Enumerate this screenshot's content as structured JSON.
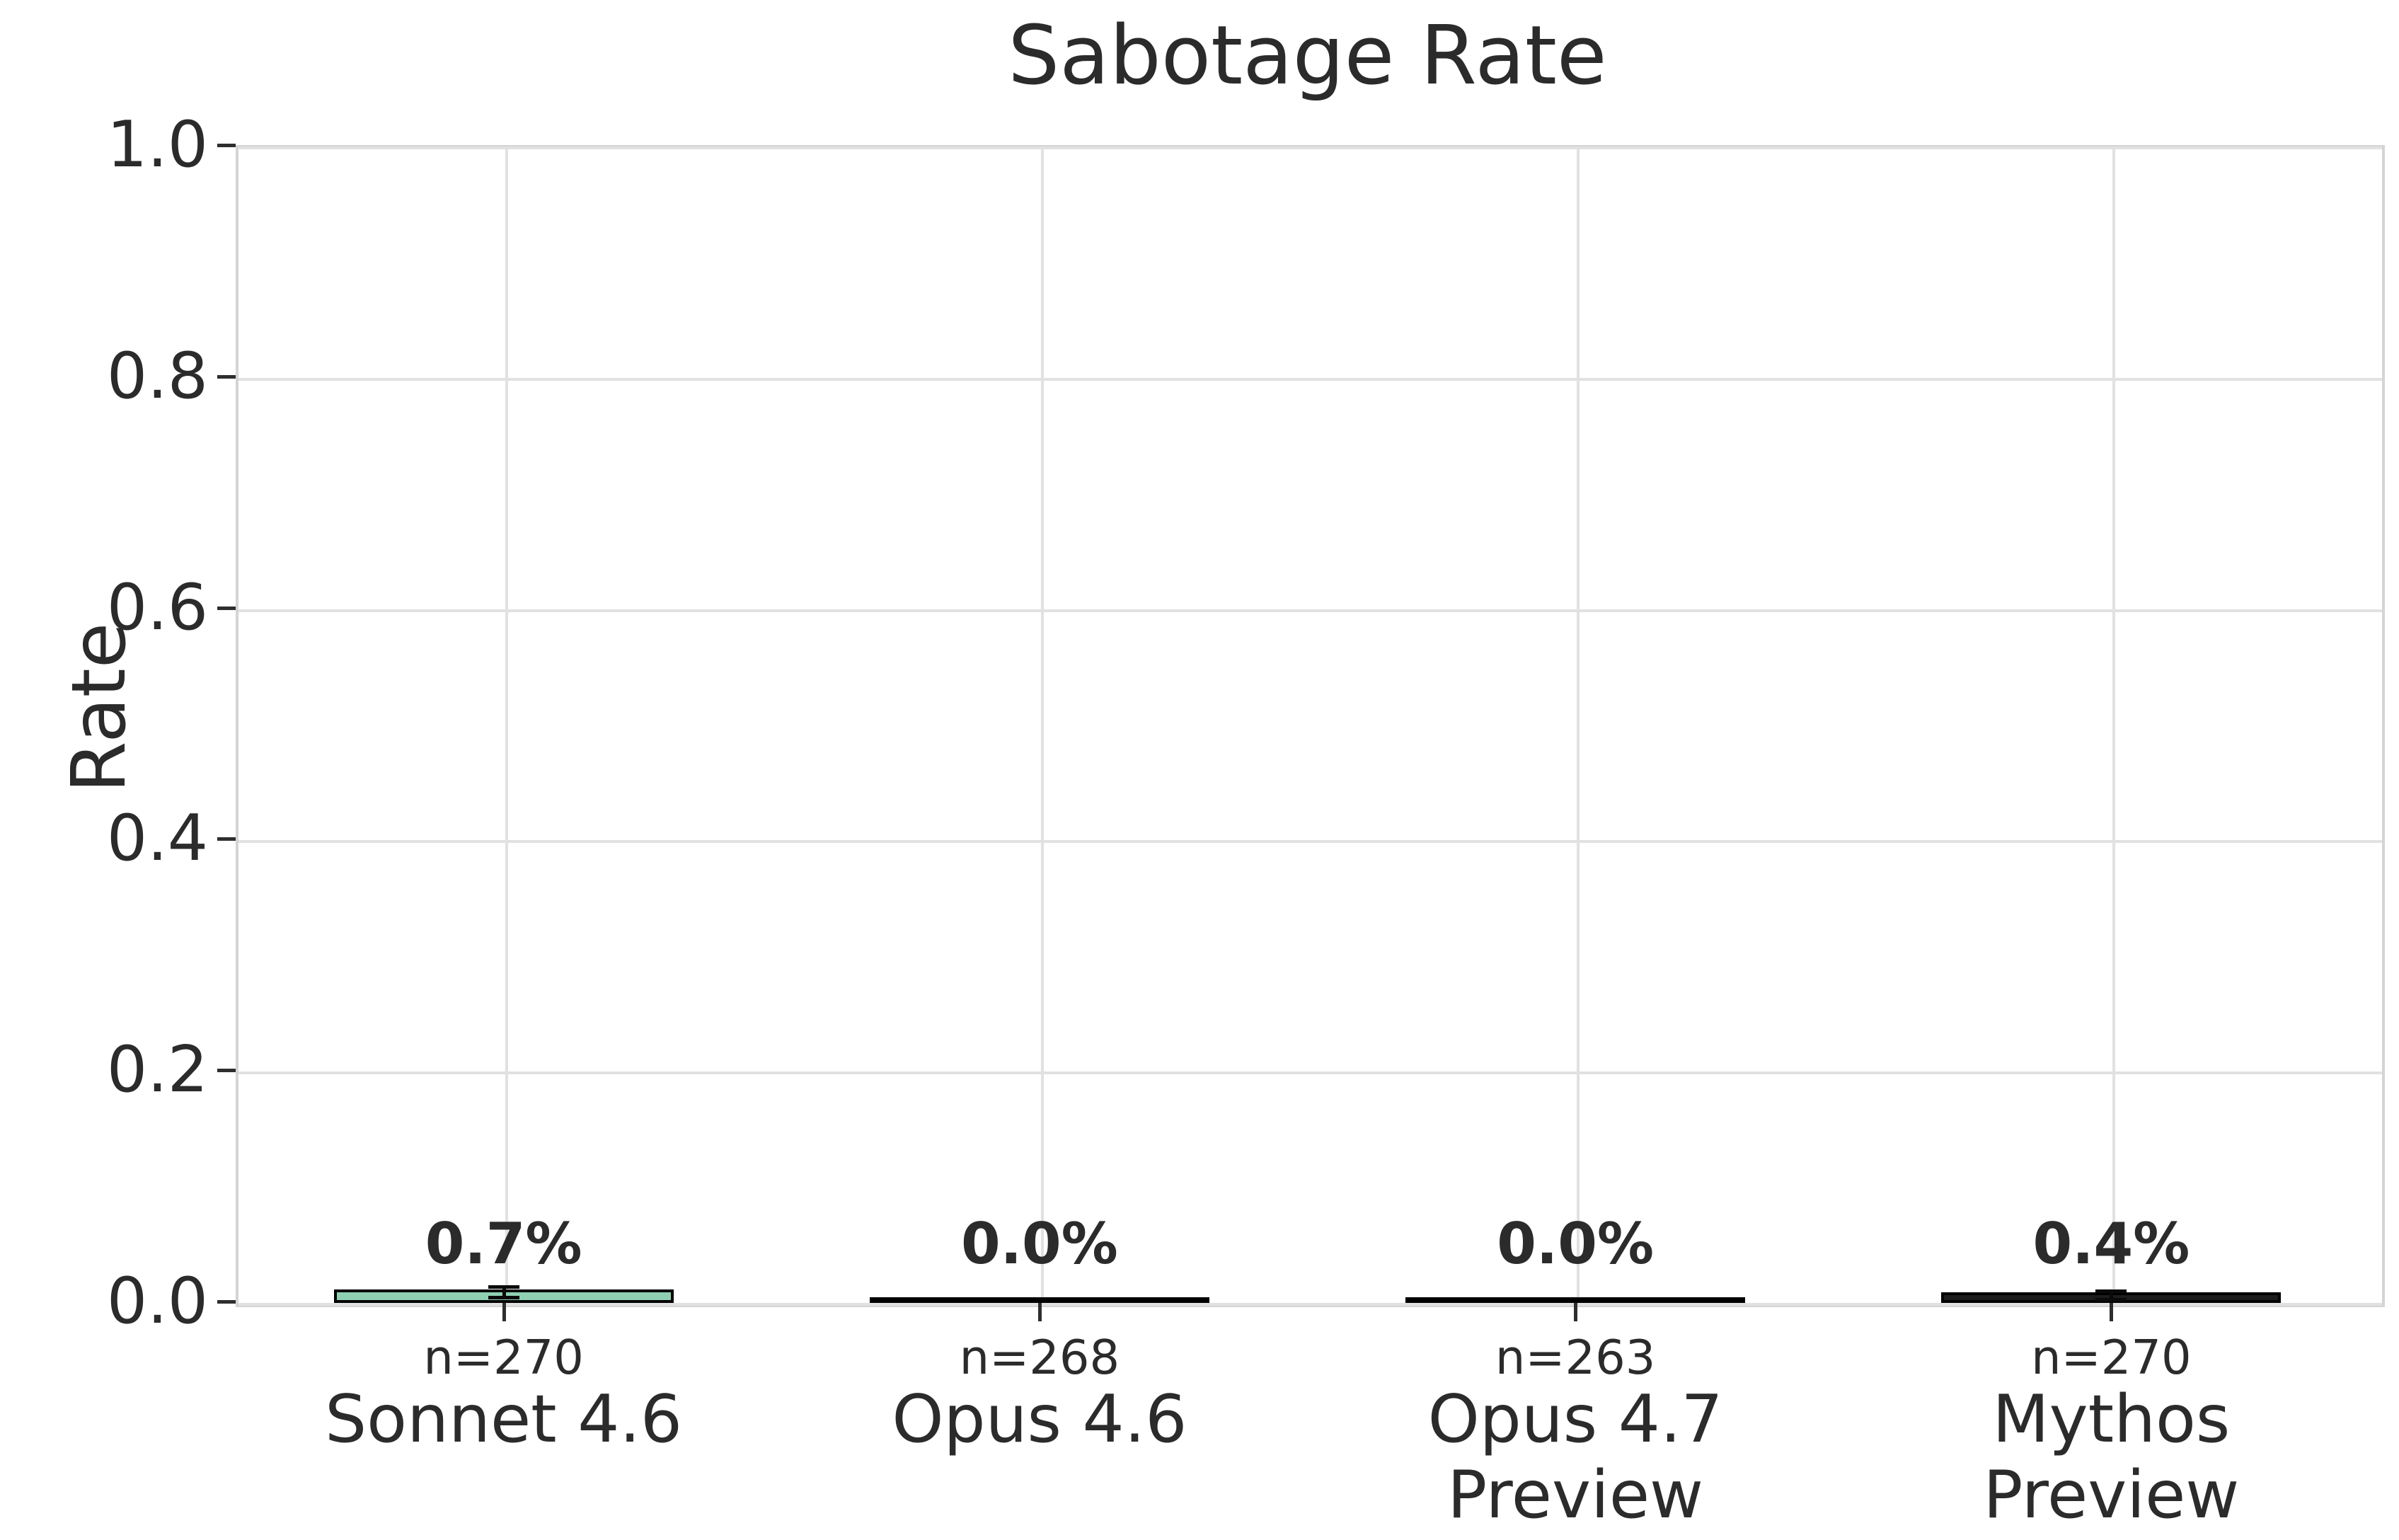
{
  "title": "Sabotage Rate",
  "colors": {
    "text": "#2b2b2b",
    "bar_edge": "#000000",
    "spine": "#d4d4d4",
    "grid": "#e1e1e1",
    "tick": "#2e2e2e",
    "sonnet_bar_fill": "#8fd0b2",
    "mythos_bar_fill": "#1c1c1c"
  },
  "chart_data": {
    "type": "bar",
    "title": "Sabotage Rate",
    "xlabel": "",
    "ylabel": "Rate",
    "ylim": [
      0,
      1
    ],
    "yticks": [
      0.0,
      0.2,
      0.4,
      0.6,
      0.8,
      1.0
    ],
    "ytick_labels": [
      "0.0",
      "0.2",
      "0.4",
      "0.6",
      "0.8",
      "1.0"
    ],
    "grid": true,
    "legend": false,
    "categories": [
      "Sonnet 4.6",
      "Opus 4.6",
      "Opus 4.7\nPreview",
      "Mythos\nPreview"
    ],
    "values": [
      0.007,
      0.0,
      0.0,
      0.004
    ],
    "bar_labels": [
      "0.7%",
      "0.0%",
      "0.0%",
      "0.4%"
    ],
    "sample_sizes": [
      "n=270",
      "n=268",
      "n=263",
      "n=270"
    ],
    "bar_colors": [
      "#8fd0b2",
      "#8fd0b2",
      "#8fd0b2",
      "#1c1c1c"
    ],
    "error_bars": [
      {
        "low": 0.003,
        "high": 0.013
      },
      null,
      null,
      {
        "low": 0.001,
        "high": 0.009
      }
    ]
  }
}
